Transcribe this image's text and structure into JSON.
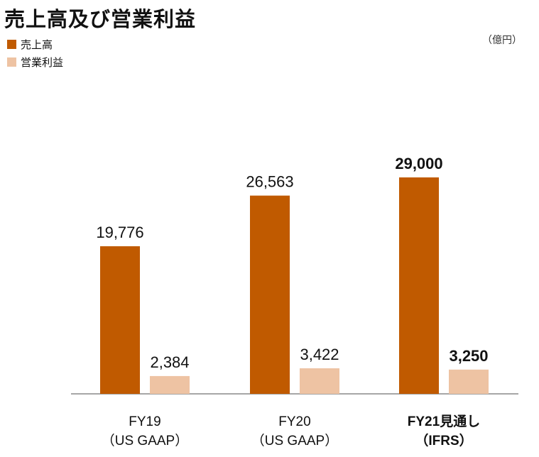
{
  "title": "売上高及び営業利益",
  "unit": "（億円）",
  "colors": {
    "sales": "#c05a00",
    "profit": "#eec3a3",
    "axis": "#888888"
  },
  "chart_data": {
    "type": "bar",
    "title": "売上高及び営業利益",
    "ylabel": "（億円）",
    "categories": [
      {
        "line1": "FY19",
        "line2": "（US GAAP）",
        "bold": false
      },
      {
        "line1": "FY20",
        "line2": "（US GAAP）",
        "bold": false
      },
      {
        "line1": "FY21見通し",
        "line2": "（IFRS）",
        "bold": true
      }
    ],
    "series": [
      {
        "name": "売上高",
        "values": [
          19776,
          26563,
          29000
        ],
        "labels": [
          "19,776",
          "26,563",
          "29,000"
        ]
      },
      {
        "name": "営業利益",
        "values": [
          2384,
          3422,
          3250
        ],
        "labels": [
          "2,384",
          "3,422",
          "3,250"
        ]
      }
    ],
    "ylim": [
      0,
      35000
    ],
    "legend": "top-left",
    "grid": false
  }
}
